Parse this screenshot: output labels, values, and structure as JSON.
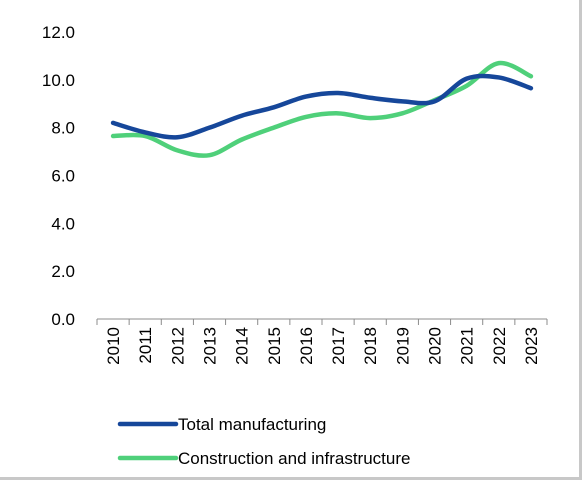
{
  "chart_data": {
    "type": "line",
    "title": "",
    "xlabel": "",
    "ylabel": "",
    "x": [
      "2010",
      "2011",
      "2012",
      "2013",
      "2014",
      "2015",
      "2016",
      "2017",
      "2018",
      "2019",
      "2020",
      "2021",
      "2022",
      "2023"
    ],
    "ylim": [
      0,
      12
    ],
    "yticks": [
      "0.0",
      "2.0",
      "4.0",
      "6.0",
      "8.0",
      "10.0",
      "12.0"
    ],
    "grid": false,
    "legend_position": "bottom",
    "series": [
      {
        "name": "Total manufacturing",
        "color": "#16479a",
        "values": [
          8.2,
          7.8,
          7.6,
          8.0,
          8.5,
          8.85,
          9.3,
          9.45,
          9.25,
          9.1,
          9.1,
          10.05,
          10.1,
          9.65
        ]
      },
      {
        "name": "Construction and infrastructure",
        "color": "#4fd07a",
        "values": [
          7.65,
          7.65,
          7.05,
          6.85,
          7.5,
          8.0,
          8.45,
          8.6,
          8.4,
          8.6,
          9.15,
          9.75,
          10.7,
          10.15
        ]
      }
    ]
  }
}
